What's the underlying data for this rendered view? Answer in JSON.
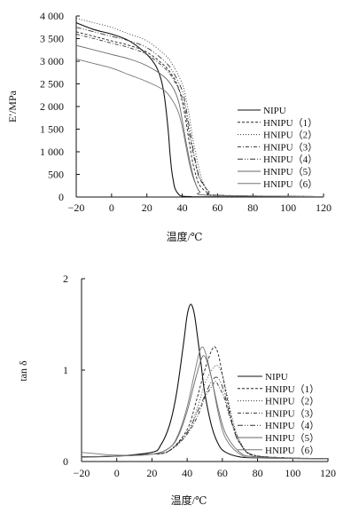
{
  "chart_data": [
    {
      "type": "line",
      "xlabel": "温度/℃",
      "ylabel": "E′/MPa",
      "xlim": [
        -20,
        120
      ],
      "ylim": [
        0,
        4000
      ],
      "xticks": [
        -20,
        0,
        20,
        40,
        60,
        80,
        100,
        120
      ],
      "xtick_labels": [
        "−20",
        "0",
        "20",
        "40",
        "60",
        "80",
        "100",
        "120"
      ],
      "yticks": [
        0,
        500,
        1000,
        1500,
        2000,
        2500,
        3000,
        3500,
        4000
      ],
      "ytick_labels": [
        "0",
        "500",
        "1 000",
        "1 500",
        "2 000",
        "2 500",
        "3 000",
        "3 500",
        "4 000"
      ],
      "legend_position": "right",
      "series": [
        {
          "name": "NIPU",
          "x": [
            -20,
            -10,
            0,
            10,
            20,
            25,
            28,
            30,
            32,
            33,
            34,
            35,
            36,
            38,
            40,
            45,
            50,
            120
          ],
          "y": [
            3850,
            3700,
            3600,
            3450,
            3150,
            2900,
            2600,
            2200,
            1500,
            1000,
            600,
            350,
            180,
            60,
            20,
            10,
            5,
            5
          ]
        },
        {
          "name": "HNIPU（1）",
          "x": [
            -20,
            -10,
            0,
            10,
            20,
            30,
            35,
            38,
            40,
            42,
            44,
            46,
            48,
            50,
            55,
            60,
            120
          ],
          "y": [
            3650,
            3550,
            3450,
            3350,
            3200,
            2900,
            2650,
            2400,
            2100,
            1700,
            1200,
            750,
            450,
            250,
            80,
            30,
            10
          ]
        },
        {
          "name": "HNIPU（2）",
          "x": [
            -20,
            -10,
            0,
            10,
            20,
            30,
            35,
            40,
            42,
            44,
            46,
            48,
            50,
            52,
            55,
            60,
            120
          ],
          "y": [
            3950,
            3850,
            3750,
            3600,
            3450,
            3150,
            2900,
            2500,
            2200,
            1800,
            1300,
            900,
            550,
            300,
            120,
            40,
            10
          ]
        },
        {
          "name": "HNIPU（3）",
          "x": [
            -20,
            -10,
            0,
            10,
            20,
            30,
            35,
            40,
            42,
            44,
            46,
            48,
            50,
            55,
            60,
            120
          ],
          "y": [
            3600,
            3500,
            3400,
            3300,
            3150,
            2850,
            2600,
            2200,
            1850,
            1400,
            1000,
            650,
            400,
            120,
            40,
            10
          ]
        },
        {
          "name": "HNIPU（4）",
          "x": [
            -20,
            -10,
            0,
            10,
            20,
            30,
            35,
            40,
            42,
            44,
            46,
            48,
            50,
            55,
            60,
            120
          ],
          "y": [
            3750,
            3650,
            3550,
            3450,
            3300,
            3000,
            2750,
            2350,
            2000,
            1550,
            1100,
            700,
            420,
            130,
            40,
            10
          ]
        },
        {
          "name": "HNIPU（5）",
          "x": [
            -20,
            -10,
            0,
            10,
            20,
            30,
            35,
            38,
            40,
            42,
            44,
            46,
            48,
            50,
            55,
            120
          ],
          "y": [
            3350,
            3250,
            3150,
            3050,
            2900,
            2650,
            2400,
            2100,
            1700,
            1250,
            850,
            500,
            250,
            120,
            40,
            10
          ]
        },
        {
          "name": "HNIPU（6）",
          "x": [
            -20,
            -10,
            0,
            10,
            20,
            30,
            35,
            38,
            40,
            42,
            44,
            46,
            48,
            50,
            55,
            120
          ],
          "y": [
            3050,
            2950,
            2850,
            2700,
            2550,
            2350,
            2100,
            1850,
            1550,
            1150,
            750,
            450,
            250,
            120,
            40,
            10
          ]
        }
      ]
    },
    {
      "type": "line",
      "xlabel": "温度/℃",
      "ylabel": "tan δ",
      "xlim": [
        -20,
        120
      ],
      "ylim": [
        0,
        2
      ],
      "xticks": [
        -20,
        0,
        20,
        40,
        60,
        80,
        100,
        120
      ],
      "xtick_labels": [
        "−20",
        "0",
        "20",
        "40",
        "60",
        "80",
        "100",
        "120"
      ],
      "yticks": [
        0,
        1,
        2
      ],
      "ytick_labels": [
        "0",
        "1",
        "2"
      ],
      "legend_position": "bottom-right",
      "series": [
        {
          "name": "NIPU",
          "x": [
            -20,
            0,
            20,
            25,
            30,
            34,
            38,
            40,
            42,
            44,
            46,
            48,
            50,
            54,
            58,
            62,
            70,
            80,
            120
          ],
          "y": [
            0.05,
            0.06,
            0.1,
            0.18,
            0.4,
            0.75,
            1.3,
            1.6,
            1.72,
            1.62,
            1.35,
            1.05,
            0.75,
            0.38,
            0.18,
            0.1,
            0.05,
            0.04,
            0.03
          ]
        },
        {
          "name": "HNIPU（1）",
          "x": [
            -20,
            0,
            20,
            30,
            40,
            45,
            50,
            54,
            56,
            58,
            60,
            62,
            66,
            70,
            80,
            120
          ],
          "y": [
            0.05,
            0.06,
            0.08,
            0.12,
            0.35,
            0.65,
            1.0,
            1.22,
            1.25,
            1.15,
            0.95,
            0.75,
            0.4,
            0.2,
            0.06,
            0.03
          ]
        },
        {
          "name": "HNIPU（2）",
          "x": [
            -20,
            0,
            20,
            30,
            40,
            46,
            50,
            54,
            57,
            60,
            63,
            66,
            70,
            80,
            120
          ],
          "y": [
            0.05,
            0.06,
            0.08,
            0.12,
            0.3,
            0.6,
            0.85,
            1.0,
            1.05,
            0.95,
            0.7,
            0.45,
            0.22,
            0.06,
            0.03
          ]
        },
        {
          "name": "HNIPU（3）",
          "x": [
            -20,
            0,
            20,
            30,
            40,
            46,
            50,
            54,
            56,
            58,
            61,
            64,
            68,
            72,
            80,
            120
          ],
          "y": [
            0.05,
            0.06,
            0.08,
            0.12,
            0.3,
            0.5,
            0.7,
            0.82,
            0.88,
            0.82,
            0.7,
            0.5,
            0.3,
            0.15,
            0.06,
            0.03
          ]
        },
        {
          "name": "HNIPU（4）",
          "x": [
            -20,
            0,
            20,
            30,
            40,
            46,
            50,
            54,
            57,
            60,
            63,
            66,
            70,
            80,
            120
          ],
          "y": [
            0.05,
            0.06,
            0.08,
            0.12,
            0.32,
            0.55,
            0.72,
            0.88,
            0.92,
            0.82,
            0.6,
            0.38,
            0.2,
            0.06,
            0.03
          ]
        },
        {
          "name": "HNIPU（5）",
          "x": [
            -20,
            0,
            20,
            30,
            35,
            40,
            44,
            48,
            50,
            52,
            54,
            58,
            62,
            70,
            80,
            120
          ],
          "y": [
            0.05,
            0.06,
            0.08,
            0.15,
            0.28,
            0.55,
            0.85,
            1.12,
            1.15,
            1.05,
            0.9,
            0.55,
            0.3,
            0.1,
            0.05,
            0.03
          ]
        },
        {
          "name": "HNIPU（6）",
          "x": [
            -20,
            0,
            20,
            30,
            35,
            40,
            44,
            47,
            49,
            51,
            54,
            58,
            62,
            70,
            80,
            120
          ],
          "y": [
            0.1,
            0.07,
            0.08,
            0.15,
            0.3,
            0.6,
            0.95,
            1.2,
            1.25,
            1.15,
            0.9,
            0.5,
            0.25,
            0.08,
            0.04,
            0.03
          ]
        }
      ]
    }
  ],
  "styles": {
    "line_color": "#222222",
    "series_dash": [
      "",
      "3,2",
      "1,2",
      "4,2,1,2",
      "6,2,1,2,1,2",
      "",
      ""
    ],
    "series_color": [
      "#111111",
      "#222222",
      "#333333",
      "#333333",
      "#333333",
      "#666666",
      "#777777"
    ]
  }
}
